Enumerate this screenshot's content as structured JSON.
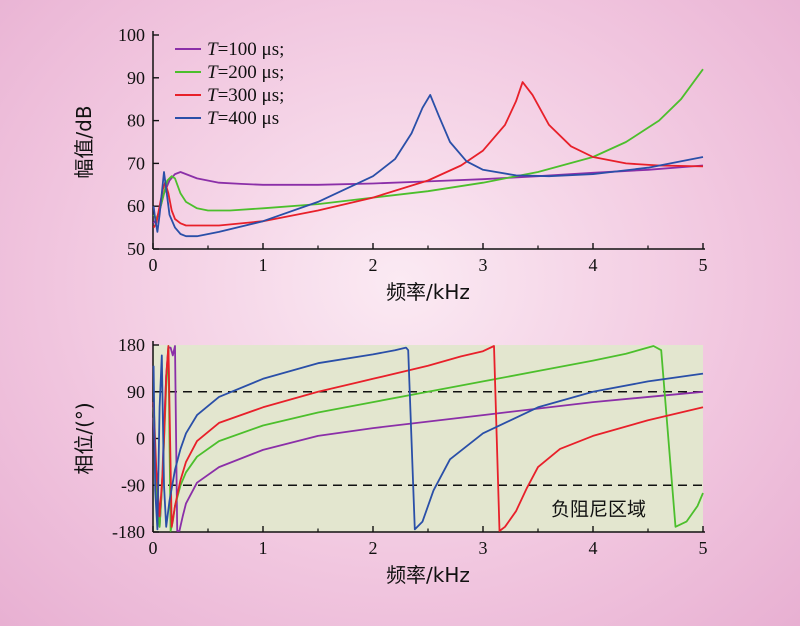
{
  "chart_data": [
    {
      "type": "line",
      "xlabel": "频率/kHz",
      "ylabel": "幅值/dB",
      "xlim": [
        0,
        5
      ],
      "ylim": [
        50,
        100
      ],
      "xticks": [
        "0",
        "1",
        "2",
        "3",
        "4",
        "5"
      ],
      "yticks": [
        "50",
        "60",
        "70",
        "80",
        "90",
        "100"
      ],
      "legend_position": "top-left",
      "series": [
        {
          "name": "T=100 μs;",
          "legend_prefix": "T",
          "legend_suffix": "=100 μs;",
          "color": "#8b2fa8",
          "x": [
            0.005,
            0.03,
            0.06,
            0.1,
            0.15,
            0.2,
            0.25,
            0.3,
            0.4,
            0.6,
            0.8,
            1.0,
            1.5,
            2.0,
            2.5,
            3.0,
            3.5,
            4.0,
            4.5,
            5.0
          ],
          "y": [
            56,
            57,
            59,
            63,
            66,
            67.5,
            68,
            67.5,
            66.5,
            65.5,
            65.2,
            65,
            65,
            65.3,
            65.8,
            66.3,
            67,
            67.8,
            68.5,
            69.5
          ]
        },
        {
          "name": "T=200 μs;",
          "legend_prefix": "T",
          "legend_suffix": "=200 μs;",
          "color": "#4cbf2c",
          "x": [
            0.005,
            0.03,
            0.06,
            0.1,
            0.13,
            0.17,
            0.2,
            0.25,
            0.3,
            0.4,
            0.5,
            0.7,
            1.0,
            1.5,
            2.0,
            2.5,
            3.0,
            3.5,
            4.0,
            4.3,
            4.6,
            4.8,
            5.0
          ],
          "y": [
            58,
            57,
            59,
            63,
            66,
            67,
            66.5,
            63,
            61,
            59.5,
            59,
            59,
            59.5,
            60.5,
            62,
            63.5,
            65.5,
            68,
            71.5,
            75,
            80,
            85,
            92
          ]
        },
        {
          "name": "T=300 μs;",
          "legend_prefix": "T",
          "legend_suffix": "=300 μs;",
          "color": "#e8202a",
          "x": [
            0.005,
            0.03,
            0.06,
            0.09,
            0.11,
            0.14,
            0.17,
            0.2,
            0.25,
            0.3,
            0.4,
            0.6,
            1.0,
            1.5,
            2.0,
            2.5,
            2.8,
            3.0,
            3.2,
            3.3,
            3.36,
            3.45,
            3.6,
            3.8,
            4.0,
            4.3,
            4.6,
            5.0
          ],
          "y": [
            55,
            56,
            60,
            64,
            65.5,
            63,
            59,
            57,
            56,
            55.5,
            55.5,
            55.5,
            56.5,
            59,
            62,
            66,
            69.5,
            73,
            79,
            84.5,
            89,
            86,
            79,
            74,
            71.5,
            70,
            69.5,
            69.3
          ]
        },
        {
          "name": "T=400 μs",
          "legend_prefix": "T",
          "legend_suffix": "=400 μs",
          "color": "#2a4fa8",
          "x": [
            0.005,
            0.02,
            0.04,
            0.06,
            0.08,
            0.1,
            0.12,
            0.15,
            0.2,
            0.25,
            0.3,
            0.4,
            0.6,
            1.0,
            1.5,
            2.0,
            2.2,
            2.35,
            2.45,
            2.52,
            2.6,
            2.7,
            2.85,
            3.0,
            3.3,
            3.6,
            4.0,
            4.5,
            5.0
          ],
          "y": [
            60,
            57,
            54,
            58,
            63,
            68,
            64,
            58,
            55,
            53.5,
            53,
            53,
            54,
            56.5,
            61,
            67,
            71,
            77,
            83,
            86,
            81,
            75,
            70.5,
            68.5,
            67.2,
            67,
            67.5,
            69,
            71.5
          ]
        }
      ]
    },
    {
      "type": "line",
      "xlabel": "频率/kHz",
      "ylabel": "相位/(°)",
      "xlim": [
        0,
        5
      ],
      "ylim": [
        -180,
        180
      ],
      "xticks": [
        "0",
        "1",
        "2",
        "3",
        "4",
        "5"
      ],
      "yticks": [
        "-180",
        "-90",
        "0",
        "90",
        "180"
      ],
      "shaded_region": {
        "label": "负阻尼区域",
        "color": "#e3e6cf"
      },
      "reference_lines": [
        90,
        -90
      ],
      "series": [
        {
          "name": "T=100 μs",
          "color": "#8b2fa8",
          "x": [
            0.005,
            0.02,
            0.04,
            0.06,
            0.08,
            0.1,
            0.12,
            0.14,
            0.16,
            0.18,
            0.2,
            0.22,
            0.24,
            0.27,
            0.3,
            0.4,
            0.6,
            1.0,
            1.5,
            2.0,
            3.0,
            4.0,
            5.0
          ],
          "x_break_after_index": 10,
          "y": [
            40,
            -60,
            -150,
            -170,
            -100,
            20,
            120,
            175,
            175,
            160,
            178,
            -178,
            -178,
            -150,
            -125,
            -85,
            -55,
            -22,
            5,
            20,
            45,
            70,
            90
          ]
        },
        {
          "name": "T=200 μs",
          "color": "#4cbf2c",
          "x": [
            0.005,
            0.03,
            0.06,
            0.09,
            0.12,
            0.14,
            0.16,
            0.18,
            0.2,
            0.25,
            0.3,
            0.4,
            0.6,
            1.0,
            1.5,
            2.0,
            2.5,
            3.0,
            3.5,
            4.0,
            4.3,
            4.55,
            4.62,
            4.75,
            4.85,
            4.95,
            5.0
          ],
          "x_break_after_index": 6,
          "y": [
            60,
            -80,
            -170,
            -60,
            100,
            178,
            -178,
            -160,
            -130,
            -90,
            -65,
            -35,
            -5,
            25,
            50,
            70,
            90,
            110,
            130,
            150,
            163,
            178,
            170,
            -170,
            -160,
            -130,
            -105
          ]
        },
        {
          "name": "T=300 μs",
          "color": "#e8202a",
          "x": [
            0.005,
            0.03,
            0.06,
            0.09,
            0.12,
            0.14,
            0.17,
            0.2,
            0.25,
            0.3,
            0.4,
            0.6,
            1.0,
            1.5,
            2.0,
            2.5,
            2.8,
            3.0,
            3.1,
            3.15,
            3.2,
            3.3,
            3.4,
            3.5,
            3.7,
            4.0,
            4.5,
            5.0
          ],
          "x_break_after_index": 5,
          "y": [
            70,
            -60,
            -150,
            -60,
            120,
            178,
            -170,
            -130,
            -80,
            -45,
            -5,
            30,
            60,
            90,
            115,
            140,
            158,
            168,
            178,
            -178,
            -170,
            -140,
            -95,
            -55,
            -20,
            5,
            35,
            60
          ]
        },
        {
          "name": "T=400 μs",
          "color": "#2a4fa8",
          "x": [
            0.005,
            0.02,
            0.04,
            0.06,
            0.08,
            0.1,
            0.12,
            0.15,
            0.2,
            0.25,
            0.3,
            0.4,
            0.6,
            1.0,
            1.5,
            2.0,
            2.2,
            2.3,
            2.32,
            2.38,
            2.45,
            2.55,
            2.7,
            3.0,
            3.5,
            4.0,
            4.5,
            5.0
          ],
          "x_break_after_index": 17,
          "y": [
            140,
            -100,
            -175,
            60,
            160,
            -90,
            -170,
            -120,
            -60,
            -20,
            10,
            45,
            80,
            115,
            145,
            162,
            170,
            175,
            170,
            -175,
            -160,
            -100,
            -40,
            10,
            60,
            90,
            110,
            125
          ]
        }
      ]
    }
  ]
}
